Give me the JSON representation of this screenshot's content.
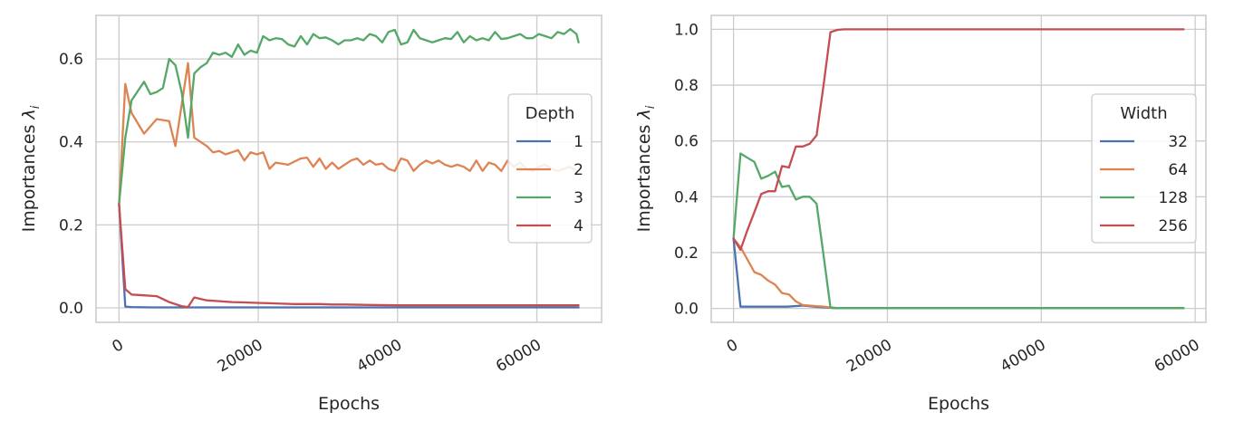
{
  "chart_data": [
    {
      "type": "line",
      "xlabel": "Epochs",
      "ylabel": "Importances",
      "ylabel_symbol": "λ",
      "ylabel_subscript": "i",
      "xlim": [
        -3300,
        69300
      ],
      "ylim": [
        -0.035,
        0.705
      ],
      "xticks": [
        0,
        20000,
        40000,
        60000
      ],
      "xtick_labels": [
        "0",
        "20000",
        "40000",
        "60000"
      ],
      "yticks": [
        0.0,
        0.2,
        0.4,
        0.6
      ],
      "ytick_labels": [
        "0.0",
        "0.2",
        "0.4",
        "0.6"
      ],
      "grid": true,
      "legend": {
        "title": "Depth",
        "placement": "center-right"
      },
      "series": [
        {
          "name": "1",
          "color": "#4c72b0",
          "x": [
            0,
            900,
            1800,
            5000,
            10000,
            20000,
            40000,
            60000,
            66000
          ],
          "y": [
            0.25,
            0.003,
            0.002,
            0.001,
            0.001,
            0.001,
            0.001,
            0.001,
            0.001
          ]
        },
        {
          "name": "2",
          "color": "#dd8452",
          "x": [
            0,
            900,
            1800,
            3600,
            5400,
            7200,
            8100,
            9900,
            10800,
            12600,
            13500,
            14400,
            15300,
            16200,
            17100,
            18000,
            18900,
            19800,
            20700,
            21600,
            22500,
            24300,
            26100,
            27000,
            27900,
            28800,
            29700,
            30600,
            31500,
            32400,
            33300,
            34200,
            35100,
            36000,
            36900,
            37800,
            38700,
            39600,
            40500,
            41400,
            42300,
            43200,
            44100,
            45000,
            45900,
            46800,
            47700,
            48600,
            49500,
            50400,
            51300,
            52200,
            53100,
            54000,
            54900,
            55800,
            56700,
            57600,
            58500,
            59400,
            60300,
            61200,
            62100,
            63000,
            63900,
            64800,
            65700
          ],
          "y": [
            0.25,
            0.54,
            0.47,
            0.42,
            0.455,
            0.45,
            0.39,
            0.59,
            0.41,
            0.39,
            0.375,
            0.378,
            0.37,
            0.375,
            0.38,
            0.355,
            0.375,
            0.37,
            0.375,
            0.335,
            0.35,
            0.345,
            0.36,
            0.362,
            0.34,
            0.36,
            0.335,
            0.35,
            0.335,
            0.345,
            0.355,
            0.36,
            0.345,
            0.355,
            0.345,
            0.348,
            0.335,
            0.33,
            0.36,
            0.355,
            0.33,
            0.345,
            0.355,
            0.348,
            0.355,
            0.345,
            0.34,
            0.345,
            0.34,
            0.33,
            0.355,
            0.33,
            0.35,
            0.345,
            0.33,
            0.355,
            0.34,
            0.35,
            0.335,
            0.33,
            0.34,
            0.345,
            0.335,
            0.33,
            0.335,
            0.34,
            0.33
          ]
        },
        {
          "name": "3",
          "color": "#55a868",
          "x": [
            0,
            900,
            1800,
            3600,
            4500,
            5400,
            6300,
            7200,
            8100,
            9000,
            9900,
            10800,
            11700,
            12600,
            13500,
            14400,
            15300,
            16200,
            17100,
            18000,
            18900,
            19800,
            20700,
            21600,
            22500,
            23400,
            24300,
            25200,
            26100,
            27000,
            27900,
            28800,
            29700,
            30600,
            31500,
            32400,
            33300,
            34200,
            35100,
            36000,
            36900,
            37800,
            38700,
            39600,
            40500,
            41400,
            42300,
            43200,
            44100,
            45000,
            45900,
            46800,
            47700,
            48600,
            49500,
            50400,
            51300,
            52200,
            53100,
            54000,
            54900,
            55800,
            56700,
            57600,
            58500,
            59400,
            60300,
            61200,
            62100,
            63000,
            63900,
            64800,
            65700,
            66000
          ],
          "y": [
            0.25,
            0.41,
            0.5,
            0.545,
            0.515,
            0.52,
            0.53,
            0.6,
            0.585,
            0.52,
            0.41,
            0.565,
            0.58,
            0.59,
            0.615,
            0.61,
            0.615,
            0.605,
            0.635,
            0.61,
            0.62,
            0.615,
            0.655,
            0.645,
            0.65,
            0.648,
            0.635,
            0.63,
            0.655,
            0.635,
            0.66,
            0.65,
            0.652,
            0.645,
            0.635,
            0.645,
            0.645,
            0.65,
            0.645,
            0.66,
            0.655,
            0.64,
            0.665,
            0.67,
            0.635,
            0.64,
            0.67,
            0.65,
            0.645,
            0.64,
            0.645,
            0.65,
            0.648,
            0.665,
            0.64,
            0.655,
            0.645,
            0.65,
            0.645,
            0.665,
            0.648,
            0.65,
            0.655,
            0.66,
            0.65,
            0.65,
            0.66,
            0.655,
            0.65,
            0.665,
            0.66,
            0.672,
            0.66,
            0.64
          ]
        },
        {
          "name": "4",
          "color": "#c44e52",
          "x": [
            0,
            900,
            1800,
            3600,
            5400,
            7200,
            9000,
            9900,
            10800,
            12600,
            14400,
            16200,
            18000,
            19800,
            21600,
            23400,
            25200,
            27000,
            28800,
            30600,
            32400,
            36000,
            40000,
            50000,
            60000,
            66000
          ],
          "y": [
            0.25,
            0.045,
            0.032,
            0.03,
            0.028,
            0.014,
            0.004,
            0.002,
            0.025,
            0.018,
            0.016,
            0.014,
            0.013,
            0.012,
            0.011,
            0.01,
            0.009,
            0.009,
            0.009,
            0.008,
            0.008,
            0.007,
            0.006,
            0.006,
            0.006,
            0.006
          ]
        }
      ]
    },
    {
      "type": "line",
      "xlabel": "Epochs",
      "ylabel": "Importances",
      "ylabel_symbol": "λ",
      "ylabel_subscript": "i",
      "xlim": [
        -2900,
        61400
      ],
      "ylim": [
        -0.05,
        1.05
      ],
      "xticks": [
        0,
        20000,
        40000,
        60000
      ],
      "xtick_labels": [
        "0",
        "20000",
        "40000",
        "60000"
      ],
      "yticks": [
        0.0,
        0.2,
        0.4,
        0.6,
        0.8,
        1.0
      ],
      "ytick_labels": [
        "0.0",
        "0.2",
        "0.4",
        "0.6",
        "0.8",
        "1.0"
      ],
      "grid": true,
      "legend": {
        "title": "Width",
        "placement": "center-right"
      },
      "series": [
        {
          "name": "32",
          "color": "#4c72b0",
          "x": [
            0,
            900,
            5000,
            7000,
            9000,
            11000,
            13500,
            20000,
            40000,
            58500
          ],
          "y": [
            0.25,
            0.006,
            0.006,
            0.006,
            0.01,
            0.005,
            0.001,
            0.001,
            0.001,
            0.001
          ]
        },
        {
          "name": "64",
          "color": "#dd8452",
          "x": [
            0,
            900,
            2700,
            3600,
            4500,
            5400,
            6300,
            7200,
            8100,
            9000,
            9900,
            10800,
            11700,
            12600,
            13500,
            20000,
            58500
          ],
          "y": [
            0.25,
            0.22,
            0.13,
            0.12,
            0.1,
            0.085,
            0.055,
            0.05,
            0.025,
            0.012,
            0.01,
            0.008,
            0.006,
            0.003,
            0.001,
            0.001,
            0.001
          ]
        },
        {
          "name": "128",
          "color": "#55a868",
          "x": [
            0,
            900,
            1800,
            2700,
            3600,
            4500,
            5400,
            6300,
            7200,
            8100,
            9000,
            9900,
            10800,
            11700,
            12600,
            13500,
            20000,
            58500
          ],
          "y": [
            0.25,
            0.555,
            0.54,
            0.525,
            0.465,
            0.475,
            0.49,
            0.435,
            0.44,
            0.39,
            0.4,
            0.4,
            0.375,
            0.19,
            0.003,
            0.001,
            0.001,
            0.001
          ]
        },
        {
          "name": "256",
          "color": "#c44e52",
          "x": [
            0,
            900,
            1800,
            2700,
            3600,
            4500,
            5400,
            6300,
            7200,
            8100,
            9000,
            9900,
            10800,
            11700,
            12600,
            13500,
            14400,
            20000,
            40000,
            58500
          ],
          "y": [
            0.25,
            0.21,
            0.28,
            0.345,
            0.41,
            0.42,
            0.42,
            0.51,
            0.505,
            0.58,
            0.58,
            0.59,
            0.62,
            0.8,
            0.99,
            0.998,
            1.0,
            1.0,
            1.0,
            1.0
          ]
        }
      ]
    }
  ]
}
